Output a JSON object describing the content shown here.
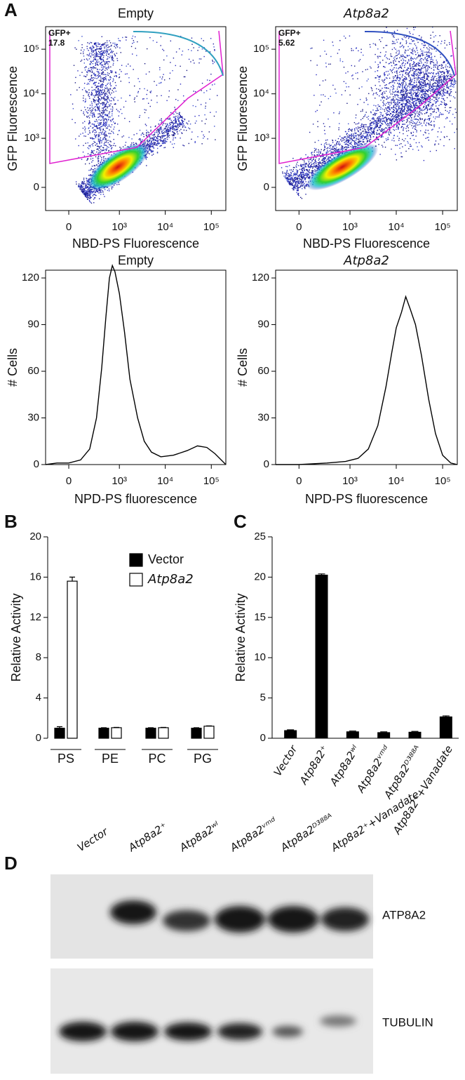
{
  "panel_labels": [
    "A",
    "B",
    "C",
    "D"
  ],
  "chart_data": [
    {
      "type": "flow_density",
      "title": "Empty",
      "title_italic": false,
      "xlabel": "NBD-PS Fluorescence",
      "ylabel": "GFP Fluorescence",
      "gate_label": "GFP+",
      "gate_value": 17.8,
      "xlim": [
        -230,
        207000
      ],
      "ylim": [
        -240,
        320000
      ],
      "xticks": [
        0,
        {
          "value": 1000,
          "label": "10³"
        },
        {
          "value": 10000,
          "label": "10⁴"
        },
        {
          "value": 100000,
          "label": "10⁵"
        }
      ],
      "yticks": [
        0,
        {
          "value": 1000,
          "label": "10³"
        },
        {
          "value": 10000,
          "label": "10⁴"
        },
        {
          "value": 100000,
          "label": "10⁵"
        }
      ]
    },
    {
      "type": "flow_density",
      "title": "Atp8a2",
      "title_italic": true,
      "xlabel": "NBD-PS Fluorescence",
      "ylabel": "GFP Fluorescence",
      "gate_label": "GFP+",
      "gate_value": 5.62,
      "xlim": [
        -230,
        207000
      ],
      "ylim": [
        -240,
        320000
      ],
      "xticks": [
        0,
        {
          "value": 1000,
          "label": "10³"
        },
        {
          "value": 10000,
          "label": "10⁴"
        },
        {
          "value": 100000,
          "label": "10⁵"
        }
      ],
      "yticks": [
        0,
        {
          "value": 1000,
          "label": "10³"
        },
        {
          "value": 10000,
          "label": "10⁴"
        },
        {
          "value": 100000,
          "label": "10⁵"
        }
      ]
    },
    {
      "type": "line",
      "title": "Empty",
      "title_italic": false,
      "xlabel": "NPD-PS fluorescence",
      "ylabel": "# Cells",
      "x": [
        -230,
        -100,
        0,
        100,
        200,
        300,
        400,
        500,
        600,
        700,
        800,
        1000,
        1300,
        1700,
        2500,
        3500,
        5000,
        8000,
        15000,
        30000,
        50000,
        80000,
        120000,
        207000
      ],
      "values": [
        0,
        1,
        1,
        3,
        10,
        30,
        62,
        95,
        120,
        128,
        124,
        110,
        85,
        55,
        30,
        15,
        8,
        5,
        6,
        9,
        12,
        11,
        7,
        0
      ],
      "xlim": [
        -230,
        207000
      ],
      "ylim": [
        0,
        125
      ],
      "xticks": [
        0,
        {
          "value": 1000,
          "label": "10³"
        },
        {
          "value": 10000,
          "label": "10⁴"
        },
        {
          "value": 100000,
          "label": "10⁵"
        }
      ],
      "yticks": [
        0,
        30,
        60,
        90,
        120
      ]
    },
    {
      "type": "line",
      "title": "Atp8a2",
      "title_italic": true,
      "xlabel": "NPD-PS fluorescence",
      "ylabel": "# Cells",
      "x": [
        -230,
        0,
        300,
        800,
        1500,
        2500,
        4000,
        6000,
        8000,
        10000,
        13000,
        16000,
        20000,
        26000,
        35000,
        50000,
        70000,
        100000,
        150000,
        207000
      ],
      "values": [
        0,
        0,
        1,
        2,
        4,
        10,
        25,
        50,
        72,
        88,
        98,
        108,
        100,
        90,
        70,
        42,
        20,
        6,
        1,
        0
      ],
      "xlim": [
        -230,
        207000
      ],
      "ylim": [
        0,
        125
      ],
      "xticks": [
        0,
        {
          "value": 1000,
          "label": "10³"
        },
        {
          "value": 10000,
          "label": "10⁴"
        },
        {
          "value": 100000,
          "label": "10⁵"
        }
      ],
      "yticks": [
        0,
        30,
        60,
        90,
        120
      ]
    },
    {
      "type": "grouped_bar",
      "ylabel": "Relative Activity",
      "categories": [
        "PS",
        "PE",
        "PC",
        "PG"
      ],
      "series": [
        {
          "name": "Vector",
          "color": "#000000",
          "values": [
            1.0,
            1.0,
            1.0,
            1.0
          ],
          "errors": [
            0.15,
            0.05,
            0.05,
            0.05
          ]
        },
        {
          "name": "Atp8a2",
          "color": "#ffffff",
          "values": [
            15.6,
            1.05,
            1.05,
            1.2
          ],
          "errors": [
            0.4,
            0.03,
            0.03,
            0.03
          ]
        }
      ],
      "ylim": [
        0,
        20
      ],
      "yticks": [
        0,
        4,
        8,
        12,
        16,
        20
      ]
    },
    {
      "type": "bar",
      "ylabel": "Relative Activity",
      "categories": [
        "Vector",
        "Atp8a2⁺",
        "Atp8a2ʷˡ",
        "Atp8a2ᵛᵐᵈ",
        "Atp8a2ᴰ³⁸⁸ᴬ",
        "Atp8a2⁺+Vanadate"
      ],
      "values": [
        1.0,
        20.3,
        0.85,
        0.75,
        0.8,
        2.7
      ],
      "errors": [
        0.05,
        0.1,
        0.05,
        0.05,
        0.05,
        0.08
      ],
      "color": "#000000",
      "ylim": [
        0,
        25
      ],
      "yticks": [
        0,
        5,
        10,
        15,
        20,
        25
      ]
    }
  ],
  "blot": {
    "lanes": [
      "Vector",
      "Atp8a2⁺",
      "Atp8a2ʷˡ",
      "Atp8a2ᵛᵐᵈ",
      "Atp8a2ᴰ³⁸⁸ᴬ",
      "Atp8a2⁺+Vanadate"
    ],
    "rows": [
      "ATP8A2",
      "TUBULIN"
    ]
  }
}
